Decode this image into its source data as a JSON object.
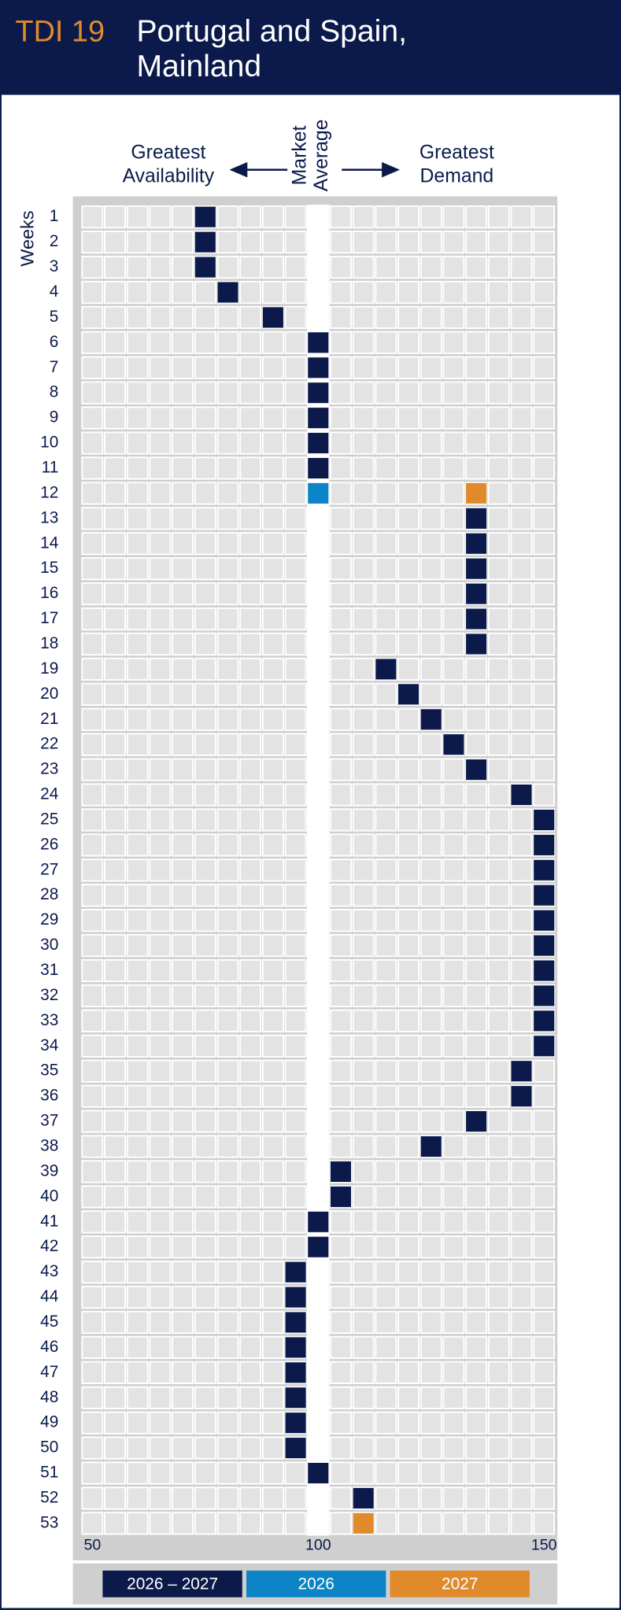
{
  "chart_data": {
    "type": "dot-grid",
    "label": "TDI 19",
    "title_lines": [
      "Portugal and Spain,",
      "Mainland"
    ],
    "annotations": {
      "left": [
        "Greatest",
        "Availability"
      ],
      "center": [
        "Market",
        "Average"
      ],
      "right": [
        "Greatest",
        "Demand"
      ]
    },
    "ylabel": "Weeks",
    "categories": [
      "1",
      "2",
      "3",
      "4",
      "5",
      "6",
      "7",
      "8",
      "9",
      "10",
      "11",
      "12",
      "13",
      "14",
      "15",
      "16",
      "17",
      "18",
      "19",
      "20",
      "21",
      "22",
      "23",
      "24",
      "25",
      "26",
      "27",
      "28",
      "29",
      "30",
      "31",
      "32",
      "33",
      "34",
      "35",
      "36",
      "37",
      "38",
      "39",
      "40",
      "41",
      "42",
      "43",
      "44",
      "45",
      "46",
      "47",
      "48",
      "49",
      "50",
      "51",
      "52",
      "53"
    ],
    "series": [
      {
        "name": "2026 – 2027",
        "color": "#0b1a4a",
        "values": [
          75,
          75,
          75,
          80,
          90,
          100,
          100,
          100,
          100,
          100,
          100,
          null,
          135,
          135,
          135,
          135,
          135,
          135,
          115,
          120,
          125,
          130,
          135,
          145,
          150,
          150,
          150,
          150,
          150,
          150,
          150,
          150,
          150,
          150,
          145,
          145,
          135,
          125,
          105,
          105,
          100,
          100,
          95,
          95,
          95,
          95,
          95,
          95,
          95,
          95,
          100,
          110,
          null
        ]
      },
      {
        "name": "2026",
        "color": "#0b84c8",
        "values": [
          null,
          null,
          null,
          null,
          null,
          null,
          null,
          null,
          null,
          null,
          null,
          100,
          null,
          null,
          null,
          null,
          null,
          null,
          null,
          null,
          null,
          null,
          null,
          null,
          null,
          null,
          null,
          null,
          null,
          null,
          null,
          null,
          null,
          null,
          null,
          null,
          null,
          null,
          null,
          null,
          null,
          null,
          null,
          null,
          null,
          null,
          null,
          null,
          null,
          null,
          null,
          null,
          null
        ]
      },
      {
        "name": "2027",
        "color": "#e08a2c",
        "values": [
          null,
          null,
          null,
          null,
          null,
          null,
          null,
          null,
          null,
          null,
          null,
          135,
          null,
          null,
          null,
          null,
          null,
          null,
          null,
          null,
          null,
          null,
          null,
          null,
          null,
          null,
          null,
          null,
          null,
          null,
          null,
          null,
          null,
          null,
          null,
          null,
          null,
          null,
          null,
          null,
          null,
          null,
          null,
          null,
          null,
          null,
          null,
          null,
          null,
          null,
          null,
          null,
          110
        ]
      }
    ],
    "xlim": [
      47.5,
      152.5
    ],
    "xticks": [
      50,
      100,
      150
    ]
  }
}
